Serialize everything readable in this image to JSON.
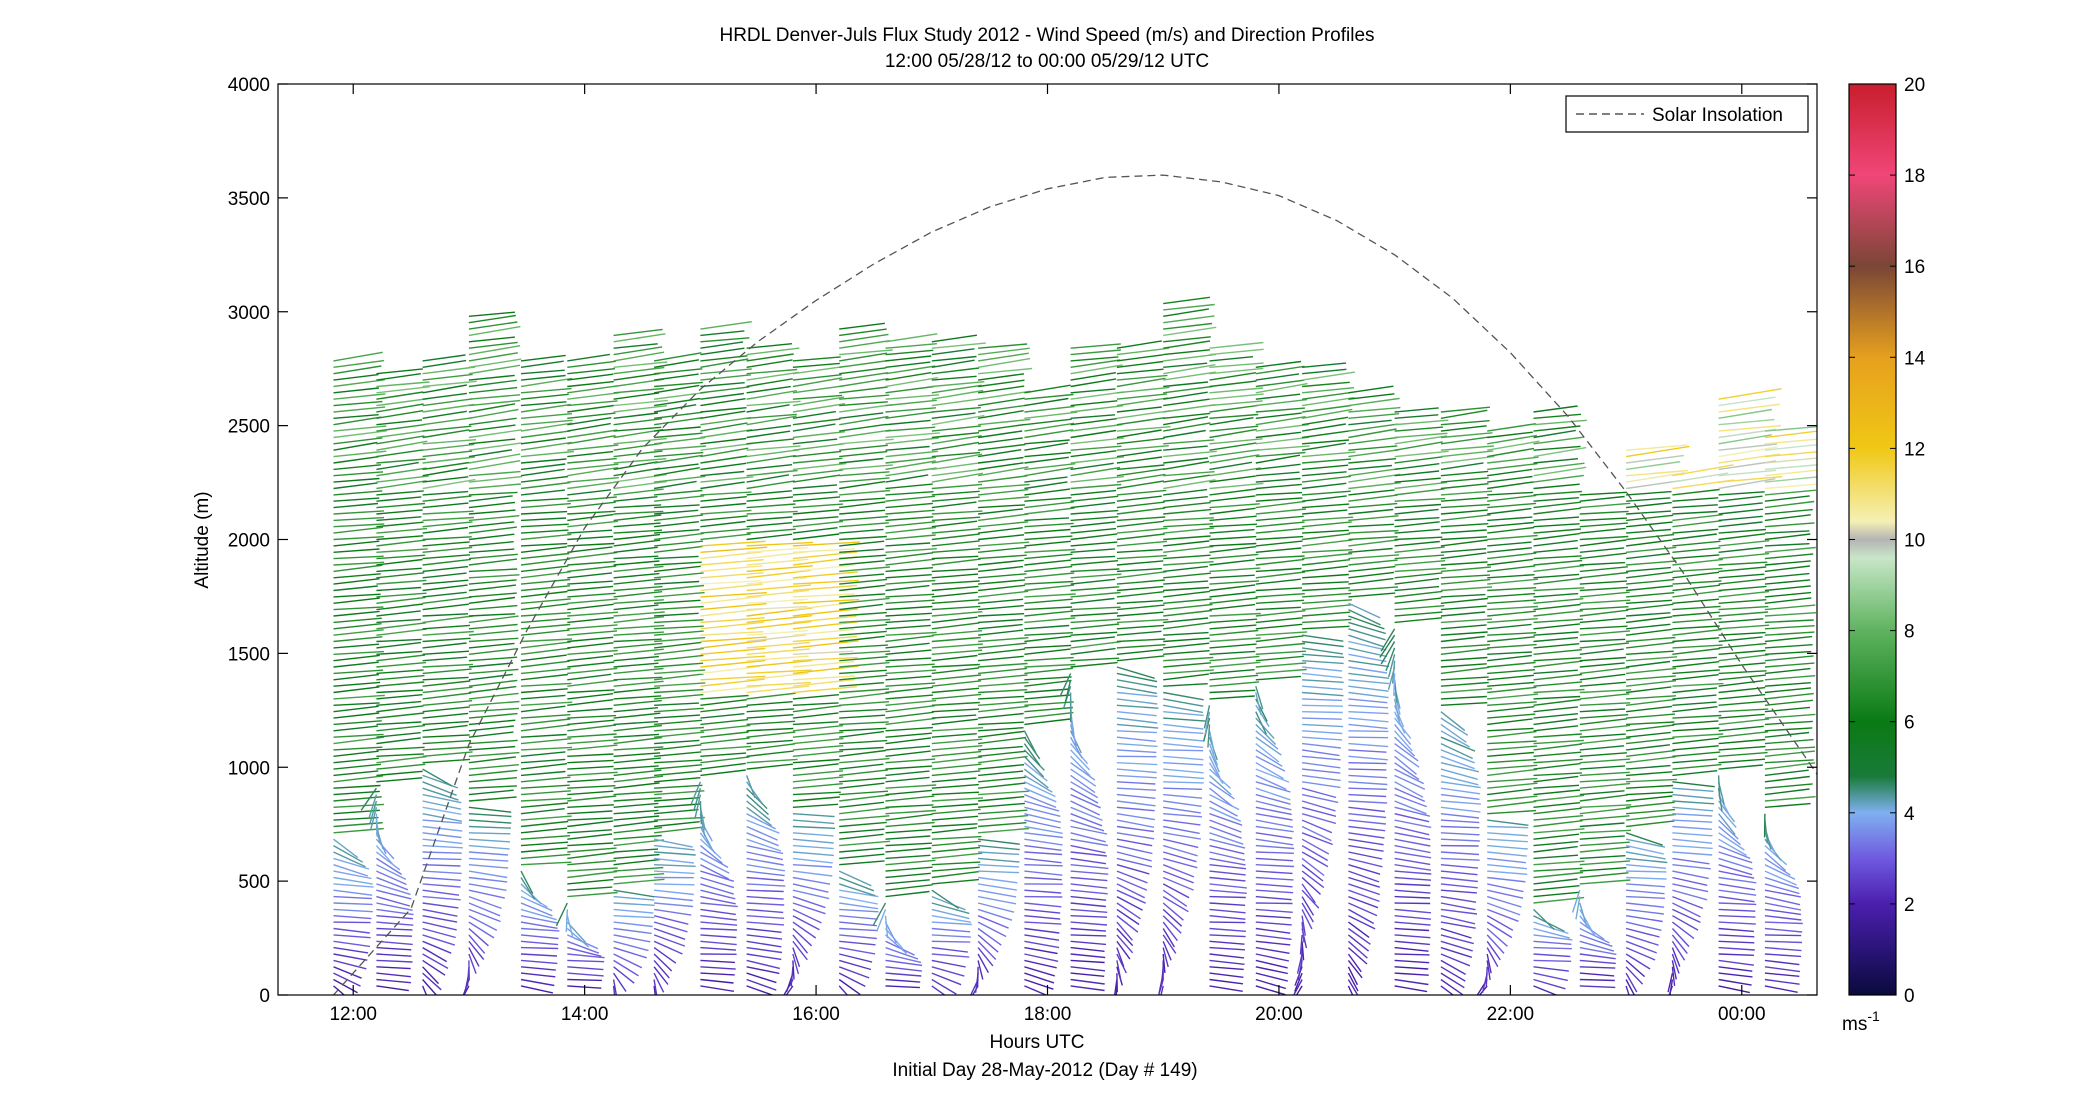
{
  "chart_data": {
    "type": "line",
    "title": "HRDL Denver-Juls Flux Study 2012 - Wind Speed (m/s) and Direction Profiles",
    "subtitle": "12:00 05/28/12 to 00:00 05/29/12  UTC",
    "xlabel": "Hours UTC",
    "xlabel2": "Initial Day 28-May-2012 (Day # 149)",
    "ylabel": "Altitude (m)",
    "x_unit": "hour",
    "xlim": [
      11.35,
      24.65
    ],
    "ylim": [
      0,
      4000
    ],
    "x_ticks": [
      12,
      14,
      16,
      18,
      20,
      22,
      24
    ],
    "x_tick_labels": [
      "12:00",
      "14:00",
      "16:00",
      "18:00",
      "20:00",
      "22:00",
      "00:00"
    ],
    "y_ticks": [
      0,
      500,
      1000,
      1500,
      2000,
      2500,
      3000,
      3500,
      4000
    ],
    "y_tick_labels": [
      "0",
      "500",
      "1000",
      "1500",
      "2000",
      "2500",
      "3000",
      "3500",
      "4000"
    ],
    "grid": false,
    "legend": {
      "position": "top-right",
      "entries": [
        "Solar Insolation"
      ]
    },
    "series": [
      {
        "name": "Solar Insolation",
        "style": "dashed",
        "color": "#555555",
        "x": [
          11.83,
          12.5,
          13.0,
          13.5,
          14.0,
          14.5,
          15.0,
          15.5,
          16.0,
          16.5,
          17.0,
          17.5,
          18.0,
          18.5,
          19.0,
          19.5,
          20.0,
          20.5,
          21.0,
          21.5,
          22.0,
          22.5,
          23.0,
          23.5,
          24.0,
          24.65
        ],
        "y": [
          0,
          380,
          1100,
          1600,
          2050,
          2400,
          2660,
          2870,
          3050,
          3210,
          3350,
          3460,
          3540,
          3590,
          3600,
          3570,
          3510,
          3400,
          3250,
          3060,
          2820,
          2540,
          2210,
          1850,
          1450,
          970
        ]
      }
    ],
    "profiles": {
      "description_hidden": false,
      "speed_unit": "m/s",
      "profile_times": [
        11.83,
        12.2,
        12.6,
        13.0,
        13.45,
        13.85,
        14.25,
        14.6,
        15.0,
        15.4,
        15.8,
        16.2,
        16.6,
        17.0,
        17.4,
        17.8,
        18.2,
        18.6,
        19.0,
        19.4,
        19.8,
        20.2,
        20.6,
        21.0,
        21.4,
        21.8,
        22.2,
        22.6,
        23.0,
        23.4,
        23.8,
        24.2
      ],
      "profile_tops": [
        2800,
        2750,
        2800,
        3000,
        2800,
        2800,
        2900,
        2800,
        2930,
        2850,
        2800,
        2930,
        2880,
        2880,
        2850,
        2650,
        2850,
        2850,
        3050,
        2850,
        2780,
        2760,
        2660,
        2580,
        2570,
        2500,
        2580,
        2220,
        2400,
        2300,
        2620,
        2500
      ],
      "regimes": [
        {
          "alt": [
            0,
            800
          ],
          "speed": [
            2,
            4
          ],
          "dir_deg": [
            330,
            20
          ]
        },
        {
          "alt": [
            800,
            2200
          ],
          "speed": [
            5,
            7
          ],
          "dir_deg": [
            270,
            290
          ]
        },
        {
          "alt": [
            2200,
            3100
          ],
          "speed": [
            4,
            8
          ],
          "dir_deg": [
            260,
            280
          ]
        }
      ]
    },
    "colorbar": {
      "label": "ms-1",
      "label_main": "ms",
      "label_sup": "-1",
      "min": 0,
      "max": 20,
      "ticks": [
        0,
        2,
        4,
        6,
        8,
        10,
        12,
        14,
        16,
        18,
        20
      ],
      "tick_labels": [
        "0",
        "2",
        "4",
        "6",
        "8",
        "10",
        "12",
        "14",
        "16",
        "18",
        "20"
      ],
      "stops": [
        {
          "v": 0,
          "c": "#0a0a3c"
        },
        {
          "v": 1,
          "c": "#2a1478"
        },
        {
          "v": 2,
          "c": "#4b1fae"
        },
        {
          "v": 3,
          "c": "#6f5ae0"
        },
        {
          "v": 4,
          "c": "#7fb0f0"
        },
        {
          "v": 4.8,
          "c": "#1a7a3a"
        },
        {
          "v": 6,
          "c": "#0a7a14"
        },
        {
          "v": 8,
          "c": "#5fb35f"
        },
        {
          "v": 9.6,
          "c": "#c8e6c8"
        },
        {
          "v": 10,
          "c": "#b4b4b4"
        },
        {
          "v": 10.4,
          "c": "#f5f0b4"
        },
        {
          "v": 12,
          "c": "#f0c814"
        },
        {
          "v": 14,
          "c": "#e6a01e"
        },
        {
          "v": 16,
          "c": "#7a4636"
        },
        {
          "v": 18,
          "c": "#f04678"
        },
        {
          "v": 20,
          "c": "#c81e2d"
        }
      ]
    }
  }
}
